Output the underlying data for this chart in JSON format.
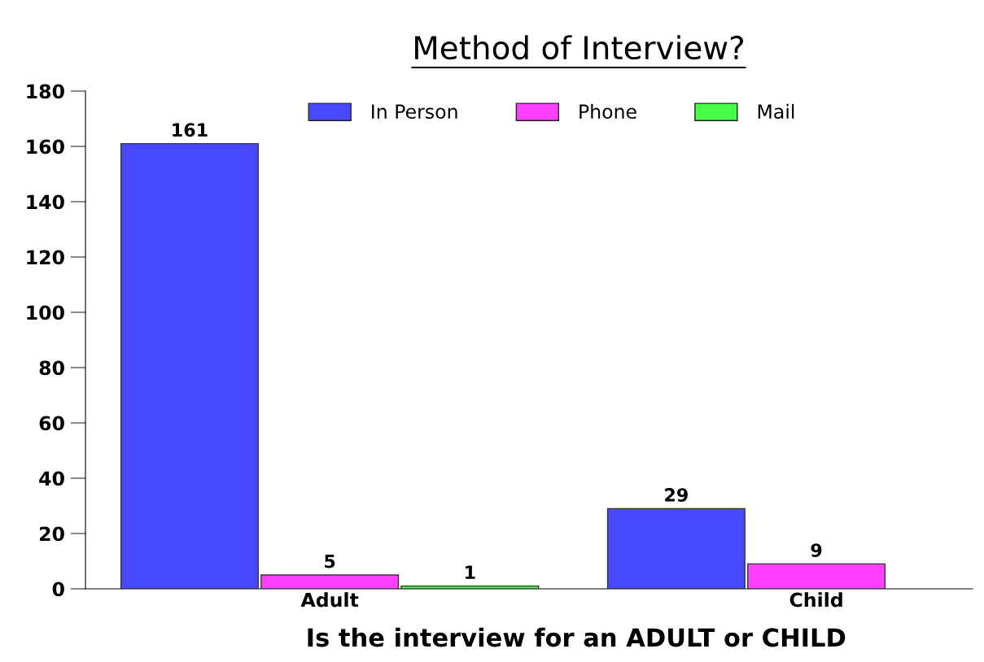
{
  "chart_data": {
    "type": "bar",
    "title": "Method of Interview?",
    "xlabel": "Is the interview for an ADULT or CHILD",
    "categories": [
      "Adult",
      "Child"
    ],
    "series": [
      {
        "name": "In Person",
        "color": "#4848ff",
        "values": [
          161,
          29
        ]
      },
      {
        "name": "Phone",
        "color": "#ff40ff",
        "values": [
          5,
          9
        ]
      },
      {
        "name": "Mail",
        "color": "#48ff48",
        "values": [
          1,
          null
        ]
      }
    ],
    "ylim": [
      0,
      180
    ],
    "yticks": [
      0,
      20,
      40,
      60,
      80,
      100,
      120,
      140,
      160,
      180
    ],
    "data_labels": true,
    "legend": "top"
  }
}
